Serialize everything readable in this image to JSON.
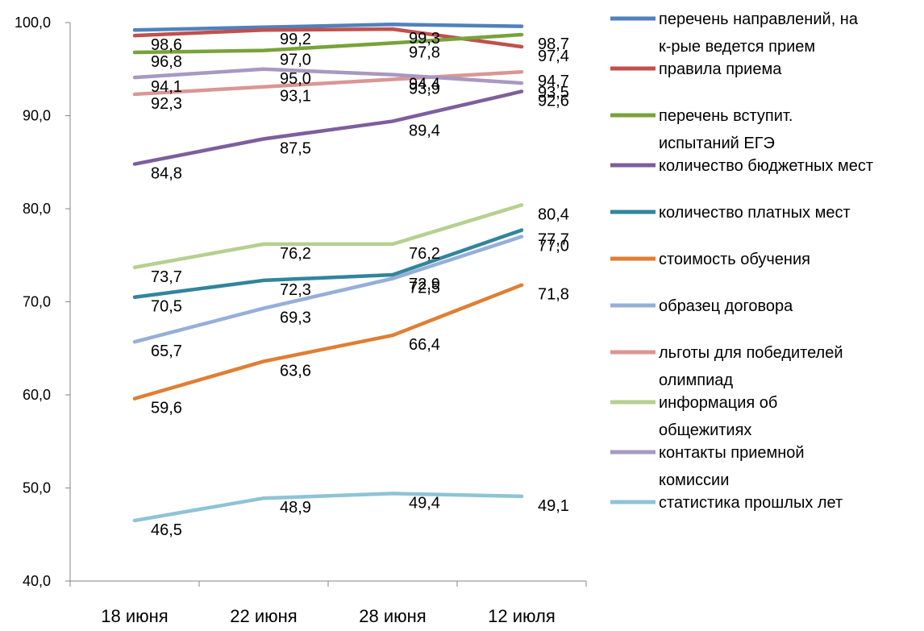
{
  "chart_data": {
    "type": "line",
    "categories": [
      "18 июня",
      "22 июня",
      "28 июня",
      "12 июля"
    ],
    "ylim": [
      40,
      100
    ],
    "yticks": [
      "40,0",
      "50,0",
      "60,0",
      "70,0",
      "80,0",
      "90,0",
      "100,0"
    ],
    "grid": false,
    "legend_position": "right",
    "series": [
      {
        "name": "перечень направлений, на к-рые ведется прием",
        "legend_lines": [
          "перечень направлений, на",
          "к-рые ведется прием"
        ],
        "color": "#4F81BD",
        "values": [
          99.2,
          99.5,
          99.8,
          99.6
        ],
        "labels": []
      },
      {
        "name": "правила приема",
        "legend_lines": [
          "правила приема"
        ],
        "color": "#C0504D",
        "values": [
          98.6,
          99.2,
          99.3,
          97.4
        ],
        "labels": [
          "98,6",
          "99,2",
          "99,3",
          "97,4"
        ]
      },
      {
        "name": "перечень вступит. испытаний ЕГЭ",
        "legend_lines": [
          "перечень вступит.",
          "испытаний ЕГЭ"
        ],
        "color": "#77A33A",
        "values": [
          96.8,
          97.0,
          97.8,
          98.7
        ],
        "labels": [
          "96,8",
          "97,0",
          "97,8",
          "98,7"
        ]
      },
      {
        "name": "количество бюджетных мест",
        "legend_lines": [
          "количество бюджетных мест"
        ],
        "color": "#7E5E9C",
        "values": [
          84.8,
          87.5,
          89.4,
          92.6
        ],
        "labels": [
          "84,8",
          "87,5",
          "89,4",
          "92,6"
        ]
      },
      {
        "name": "количество платных мест",
        "legend_lines": [
          "количество платных мест"
        ],
        "color": "#31859C",
        "values": [
          70.5,
          72.3,
          72.9,
          77.7
        ],
        "labels": [
          "70,5",
          "72,3",
          "72,9",
          "77,7"
        ]
      },
      {
        "name": "стоимость обучения",
        "legend_lines": [
          "стоимость обучения"
        ],
        "color": "#E07E32",
        "values": [
          59.6,
          63.6,
          66.4,
          71.8
        ],
        "labels": [
          "59,6",
          "63,6",
          "66,4",
          "71,8"
        ]
      },
      {
        "name": "образец договора",
        "legend_lines": [
          "образец договора"
        ],
        "color": "#95AFD8",
        "values": [
          65.7,
          69.3,
          72.5,
          77.0
        ],
        "labels": [
          "65,7",
          "69,3",
          "72,5",
          "77,0"
        ]
      },
      {
        "name": "льготы для победителей олимпиад",
        "legend_lines": [
          "льготы для победителей",
          "олимпиад"
        ],
        "color": "#D99694",
        "values": [
          92.3,
          93.1,
          93.9,
          94.7
        ],
        "labels": [
          "92,3",
          "93,1",
          "93,9",
          "94,7"
        ]
      },
      {
        "name": "информация об общежитиях",
        "legend_lines": [
          "информация об",
          "общежитиях"
        ],
        "color": "#B6D08E",
        "values": [
          73.7,
          76.2,
          76.2,
          80.4
        ],
        "labels": [
          "73,7",
          "76,2",
          "76,2",
          "80,4"
        ]
      },
      {
        "name": "контакты приемной комиссии",
        "legend_lines": [
          "контакты приемной",
          "комиссии"
        ],
        "color": "#A898C2",
        "values": [
          94.1,
          95.0,
          94.4,
          93.5
        ],
        "labels": [
          "94,1",
          "95,0",
          "94,4",
          "93,5"
        ]
      },
      {
        "name": "статистика прошлых лет",
        "legend_lines": [
          "статистика прошлых лет"
        ],
        "color": "#8EC3D6",
        "values": [
          46.5,
          48.9,
          49.4,
          49.1
        ],
        "labels": [
          "46,5",
          "48,9",
          "49,4",
          "49,1"
        ]
      }
    ]
  }
}
